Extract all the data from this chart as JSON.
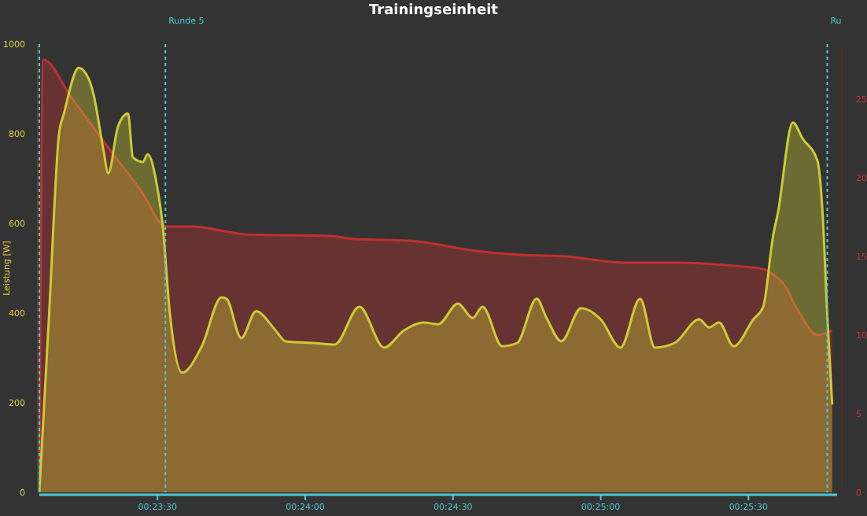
{
  "chart_data": {
    "type": "area",
    "title": "Trainingseinheit",
    "ylabel": "Leistung [W]",
    "xlim": [
      1386,
      1548
    ],
    "xticks": [
      {
        "value": 1410,
        "label": "00:23:30"
      },
      {
        "value": 1440,
        "label": "00:24:00"
      },
      {
        "value": 1470,
        "label": "00:24:30"
      },
      {
        "value": 1500,
        "label": "00:25:00"
      },
      {
        "value": 1530,
        "label": "00:25:30"
      }
    ],
    "ylim": [
      0,
      1000
    ],
    "yticks": [
      0,
      200,
      400,
      600,
      800,
      1000
    ],
    "y2lim": [
      0,
      28.5
    ],
    "y2ticks": [
      0,
      5,
      10,
      15,
      20,
      25
    ],
    "ref_lines": [
      {
        "axis": "x",
        "value": 1386,
        "label": null,
        "color": "#4dc9d6",
        "line_style": "dotted"
      },
      {
        "axis": "x",
        "value": 1411.6,
        "label": "Runde 5",
        "color": "#4dc9d6",
        "line_style": "dotted"
      },
      {
        "axis": "x",
        "value": 1546,
        "label": "Ru",
        "color": "#4dc9d6",
        "line_style": "dotted"
      }
    ],
    "series": [
      {
        "color": "#c03030",
        "axis": "y2",
        "x": [
          1386,
          1386.8,
          1392.5,
          1400.5,
          1407,
          1411,
          1412,
          1417,
          1428,
          1445,
          1450,
          1461,
          1476,
          1484,
          1493,
          1505,
          1516,
          1527,
          1533,
          1536,
          1537,
          1540,
          1544,
          1547
        ],
        "values": [
          0,
          27.5,
          25.1,
          21.7,
          19.0,
          17.0,
          16.9,
          16.9,
          16.4,
          16.3,
          16.1,
          16.0,
          15.3,
          15.1,
          15.0,
          14.6,
          14.6,
          14.4,
          14.2,
          13.6,
          13.3,
          11.6,
          10.0,
          10.3
        ]
      },
      {
        "color": "#cccc33",
        "x": [
          1386,
          1388,
          1390,
          1391,
          1394,
          1396,
          1397,
          1399,
          1400,
          1402,
          1404,
          1405,
          1407,
          1408,
          1410,
          1411,
          1412.5,
          1415,
          1419,
          1423,
          1424,
          1427,
          1430,
          1434,
          1436,
          1442,
          1446,
          1451,
          1456,
          1460,
          1464,
          1467,
          1471,
          1474,
          1476,
          1480,
          1483,
          1487,
          1489,
          1492,
          1496,
          1500,
          1504,
          1508,
          1511,
          1515,
          1520,
          1522,
          1524,
          1527,
          1531,
          1533,
          1535,
          1536,
          1539,
          1541,
          1544,
          1545,
          1546,
          1547
        ],
        "values": [
          0,
          400,
          800,
          845,
          947,
          923,
          888,
          765,
          712,
          817,
          845,
          747,
          737,
          754,
          677,
          600,
          400,
          267,
          326,
          435,
          432,
          344,
          404,
          361,
          337,
          333,
          330,
          414,
          323,
          361,
          379,
          375,
          421,
          389,
          414,
          326,
          333,
          432,
          389,
          337,
          411,
          386,
          323,
          432,
          323,
          333,
          386,
          368,
          379,
          326,
          386,
          414,
          572,
          625,
          825,
          789,
          740,
          632,
          396,
          196
        ]
      }
    ]
  }
}
